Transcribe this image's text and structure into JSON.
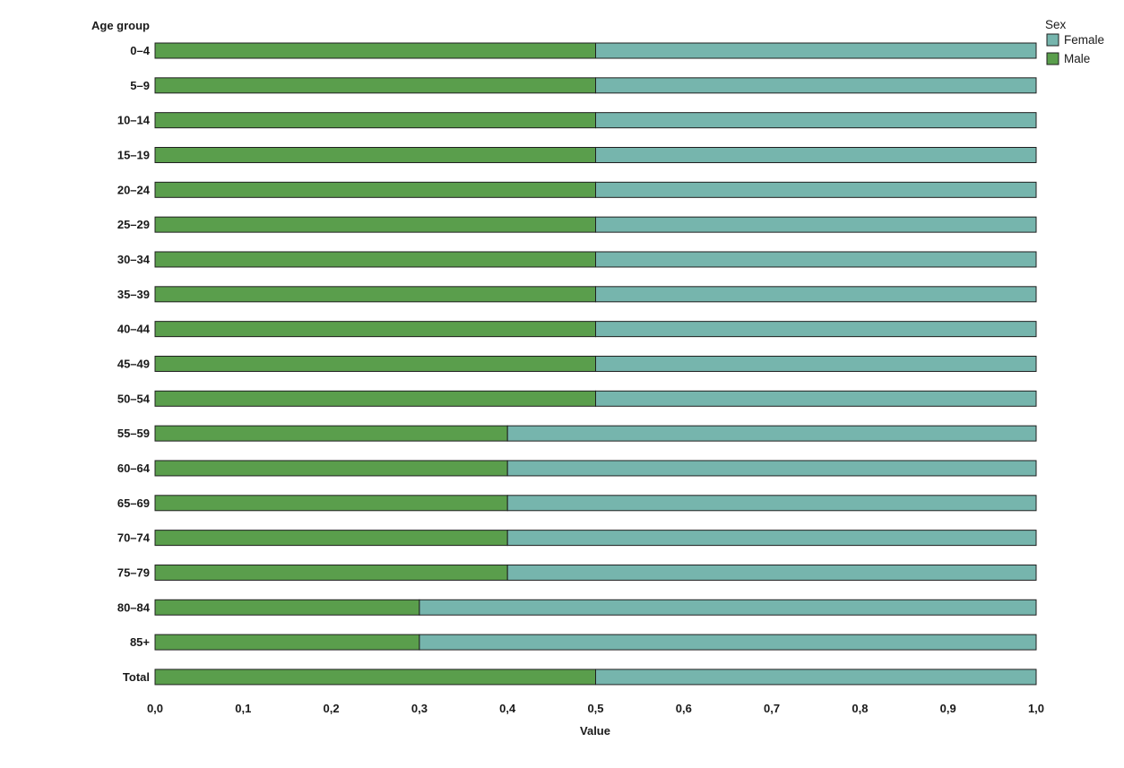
{
  "chart_data": {
    "type": "bar",
    "orientation": "horizontal",
    "stacked": true,
    "categories": [
      "0–4",
      "5–9",
      "10–14",
      "15–19",
      "20–24",
      "25–29",
      "30–34",
      "35–39",
      "40–44",
      "45–49",
      "50–54",
      "55–59",
      "60–64",
      "65–69",
      "70–74",
      "75–79",
      "80–84",
      "85+",
      "Total"
    ],
    "series": [
      {
        "name": "Male",
        "color": "#5a9e4c",
        "values": [
          0.5,
          0.5,
          0.5,
          0.5,
          0.5,
          0.5,
          0.5,
          0.5,
          0.5,
          0.5,
          0.5,
          0.4,
          0.4,
          0.4,
          0.4,
          0.4,
          0.3,
          0.3,
          0.5
        ]
      },
      {
        "name": "Female",
        "color": "#76b5ad",
        "values": [
          0.5,
          0.5,
          0.5,
          0.5,
          0.5,
          0.5,
          0.5,
          0.5,
          0.5,
          0.5,
          0.5,
          0.6,
          0.6,
          0.6,
          0.6,
          0.6,
          0.7,
          0.7,
          0.5
        ]
      }
    ],
    "xlabel": "Value",
    "ylabel": "Age group",
    "xlim": [
      0,
      1.0
    ],
    "xticks": [
      "0,0",
      "0,1",
      "0,2",
      "0,3",
      "0,4",
      "0,5",
      "0,6",
      "0,7",
      "0,8",
      "0,9",
      "1,0"
    ],
    "grid": false,
    "legend": {
      "title": "Sex",
      "entries": [
        "Female",
        "Male"
      ],
      "position": "top-right"
    }
  }
}
